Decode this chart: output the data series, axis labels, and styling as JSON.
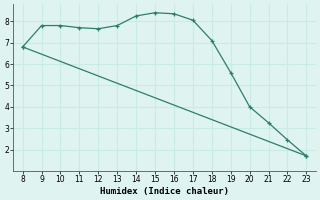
{
  "xlabel": "Humidex (Indice chaleur)",
  "x_values": [
    8,
    9,
    10,
    11,
    12,
    13,
    14,
    15,
    16,
    17,
    18,
    19,
    20,
    21,
    22,
    23
  ],
  "line1_y": [
    6.8,
    7.8,
    7.8,
    7.7,
    7.65,
    7.8,
    8.25,
    8.4,
    8.35,
    8.05,
    7.1,
    5.6,
    4.0,
    3.25,
    2.45,
    1.7
  ],
  "line2_x": [
    8,
    23
  ],
  "line2_y": [
    6.8,
    1.7
  ],
  "line_color": "#2d7d6e",
  "bg_color": "#dff4f0",
  "grid_color": "#c8ebe5",
  "xlim": [
    7.5,
    23.5
  ],
  "ylim": [
    1.0,
    8.8
  ],
  "yticks": [
    2,
    3,
    4,
    5,
    6,
    7,
    8
  ],
  "xticks": [
    8,
    9,
    10,
    11,
    12,
    13,
    14,
    15,
    16,
    17,
    18,
    19,
    20,
    21,
    22,
    23
  ]
}
